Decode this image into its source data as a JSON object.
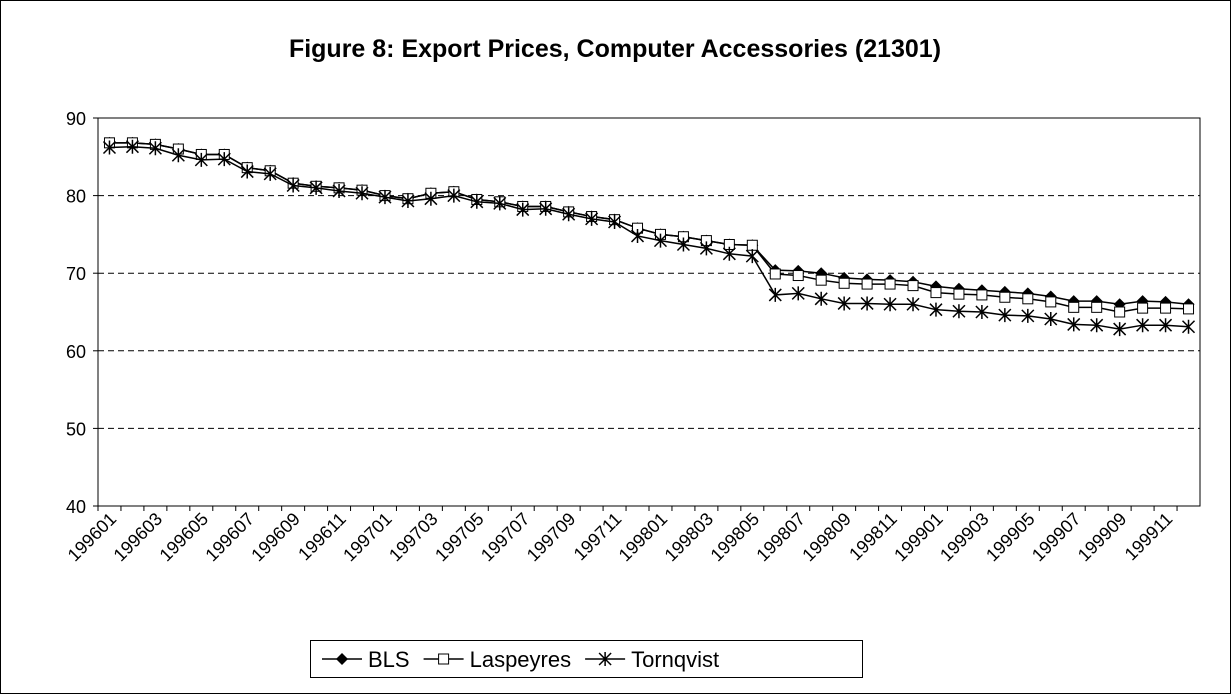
{
  "chart_data": {
    "type": "line",
    "title": "Figure 8: Export Prices, Computer Accessories (21301)",
    "categories": [
      "199601",
      null,
      "199603",
      null,
      "199605",
      null,
      "199607",
      null,
      "199609",
      null,
      "199611",
      null,
      "199701",
      null,
      "199703",
      null,
      "199705",
      null,
      "199707",
      null,
      "199709",
      null,
      "199711",
      null,
      "199801",
      null,
      "199803",
      null,
      "199805",
      null,
      "199807",
      null,
      "199809",
      null,
      "199811",
      null,
      "199901",
      null,
      "199903",
      null,
      "199905",
      null,
      "199907",
      null,
      "199909",
      null,
      "199911",
      null
    ],
    "series": [
      {
        "name": "BLS",
        "color": "#000000",
        "marker": "diamond",
        "values": [
          86.8,
          86.8,
          86.6,
          86.0,
          85.3,
          85.3,
          83.6,
          83.2,
          81.6,
          81.2,
          81.0,
          80.7,
          80.0,
          79.6,
          80.3,
          80.5,
          79.5,
          79.2,
          78.6,
          78.6,
          77.9,
          77.3,
          76.9,
          75.8,
          75.0,
          74.7,
          74.2,
          73.7,
          73.6,
          70.4,
          70.3,
          70.0,
          69.4,
          69.2,
          69.1,
          68.9,
          68.3,
          68.0,
          67.8,
          67.6,
          67.4,
          67.0,
          66.4,
          66.4,
          66.0,
          66.4,
          66.3,
          66.0
        ]
      },
      {
        "name": "Laspeyres",
        "color": "#000000",
        "marker": "square",
        "values": [
          86.8,
          86.8,
          86.6,
          86.0,
          85.3,
          85.3,
          83.6,
          83.2,
          81.6,
          81.2,
          81.0,
          80.7,
          80.0,
          79.6,
          80.3,
          80.5,
          79.5,
          79.2,
          78.6,
          78.6,
          77.9,
          77.3,
          76.9,
          75.8,
          75.0,
          74.7,
          74.2,
          73.7,
          73.6,
          69.9,
          69.7,
          69.1,
          68.7,
          68.6,
          68.6,
          68.4,
          67.5,
          67.3,
          67.2,
          66.9,
          66.7,
          66.3,
          65.6,
          65.6,
          65.0,
          65.5,
          65.5,
          65.4
        ]
      },
      {
        "name": "Tornqvist",
        "color": "#000000",
        "marker": "asterisk",
        "values": [
          86.2,
          86.3,
          86.1,
          85.2,
          84.6,
          84.7,
          83.1,
          82.8,
          81.3,
          81.0,
          80.6,
          80.3,
          79.8,
          79.3,
          79.6,
          80.0,
          79.2,
          79.0,
          78.2,
          78.3,
          77.6,
          77.0,
          76.6,
          74.8,
          74.2,
          73.7,
          73.2,
          72.5,
          72.2,
          67.2,
          67.4,
          66.7,
          66.1,
          66.1,
          66.0,
          66.0,
          65.3,
          65.1,
          65.0,
          64.6,
          64.5,
          64.1,
          63.4,
          63.3,
          62.8,
          63.3,
          63.3,
          63.1
        ]
      }
    ],
    "ylim": [
      40,
      90
    ],
    "yticks": [
      40,
      50,
      60,
      70,
      80,
      90
    ],
    "grid": true,
    "legend": "bottom"
  }
}
